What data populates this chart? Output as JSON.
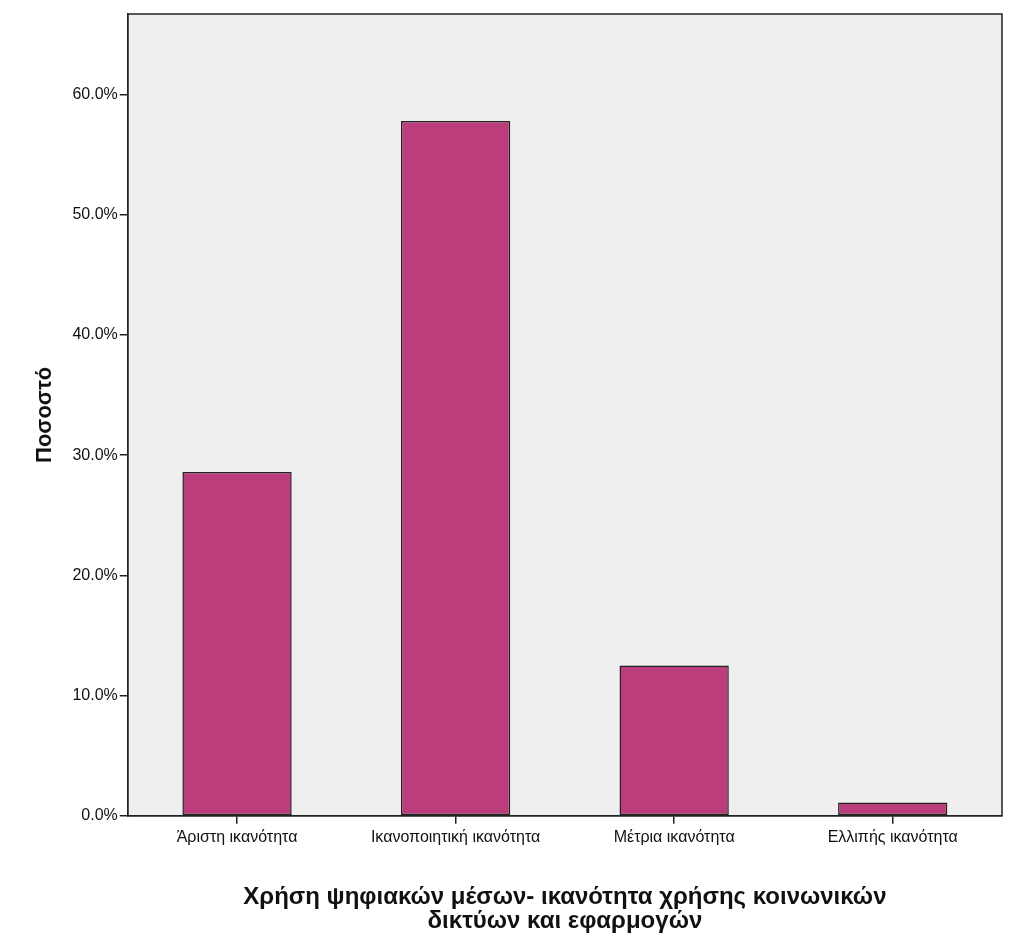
{
  "chart_data": {
    "type": "bar",
    "categories": [
      "Άριστη ικανότητα",
      "Ικανοποιητική ικανότητα",
      "Μέτρια ικανότητα",
      "Ελλιπής ικανότητα"
    ],
    "values": [
      28.6,
      57.8,
      12.5,
      1.1
    ],
    "color": "#bb3d7b",
    "xlabel": "Χρήση ψηφιακών μέσων- ικανότητα χρήσης κοινωνικών δικτύων και εφαρμογών",
    "ylabel": "Ποσοστό",
    "ylim": [
      0,
      66.7
    ],
    "yticks": [
      {
        "value": 0,
        "label": "0.0%"
      },
      {
        "value": 10,
        "label": "10.0%"
      },
      {
        "value": 20,
        "label": "20.0%"
      },
      {
        "value": 30,
        "label": "30.0%"
      },
      {
        "value": 40,
        "label": "40.0%"
      },
      {
        "value": 50,
        "label": "50.0%"
      },
      {
        "value": 60,
        "label": "60.0%"
      }
    ],
    "grid": false,
    "legend": false
  }
}
